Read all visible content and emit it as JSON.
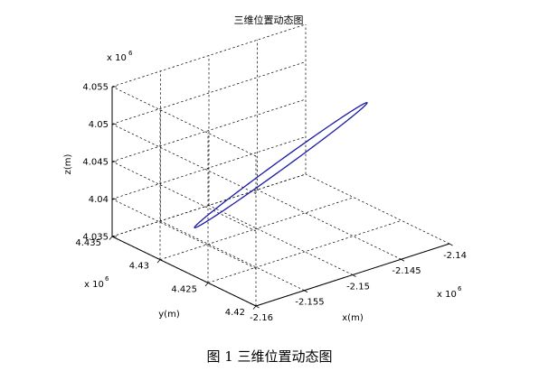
{
  "chart_data": {
    "type": "line",
    "title": "三维位置动态图",
    "xlabel": "x(m)",
    "ylabel": "y(m)",
    "zlabel": "z(m)",
    "x_scale_label": "x 10",
    "y_scale_label": "x 10",
    "z_scale_label": "x 10",
    "scale_exponent": "6",
    "xlim": [
      -2.16,
      -2.14
    ],
    "ylim": [
      4.42,
      4.435
    ],
    "zlim": [
      4.035,
      4.055
    ],
    "x_ticks": [
      -2.16,
      -2.155,
      -2.15,
      -2.145,
      -2.14
    ],
    "x_tick_labels": [
      "-2.16",
      "-2.155",
      "-2.15",
      "-2.145",
      "-2.14"
    ],
    "y_ticks": [
      4.42,
      4.425,
      4.43,
      4.435
    ],
    "y_tick_labels": [
      "4.42",
      "4.425",
      "4.43",
      "4.435"
    ],
    "z_ticks": [
      4.035,
      4.04,
      4.045,
      4.05,
      4.055
    ],
    "z_tick_labels": [
      "4.035",
      "4.04",
      "4.045",
      "4.05",
      "4.055"
    ],
    "grid": true,
    "series": [
      {
        "color": "#1a1aa6",
        "closed": true,
        "orbit_center": [
          -2.15,
          4.4275,
          4.045
        ],
        "x": [
          -2.1569,
          -2.154,
          -2.1478,
          -2.1415,
          -2.1395,
          -2.1431,
          -2.1498,
          -2.1562,
          -2.1569
        ],
        "y": [
          4.4275,
          4.429,
          4.4296,
          4.429,
          4.4275,
          4.426,
          4.4254,
          4.426,
          4.4275
        ],
        "z": [
          4.0385,
          4.0399,
          4.0431,
          4.0464,
          4.0486,
          4.0488,
          4.0469,
          4.0432,
          4.0385
        ]
      }
    ]
  },
  "caption": "图 1  三维位置动态图"
}
